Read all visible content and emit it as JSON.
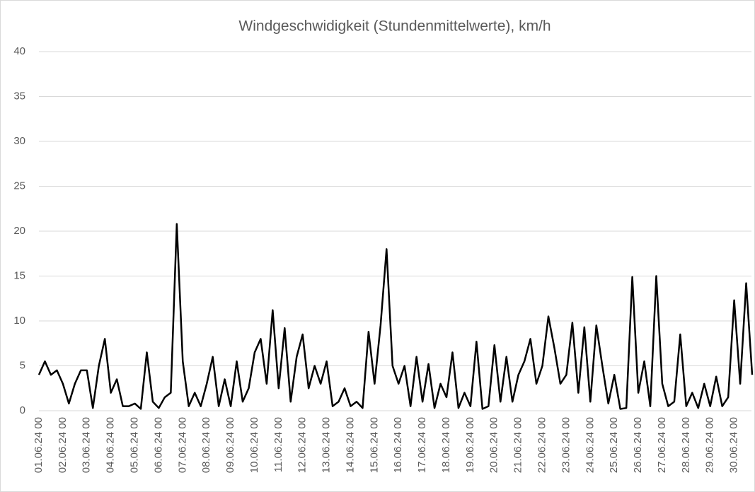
{
  "chart_data": {
    "type": "line",
    "title": "Windgeschwidigkeit (Stundenmittelwerte), km/h",
    "categories": [
      "01.06.24 00",
      null,
      null,
      null,
      "02.06.24 00",
      null,
      null,
      null,
      "03.06.24 00",
      null,
      null,
      null,
      "04.06.24 00",
      null,
      null,
      null,
      "05.06.24 00",
      null,
      null,
      null,
      "06.06.24 00",
      null,
      null,
      null,
      "07.06.24 00",
      null,
      null,
      null,
      "08.06.24 00",
      null,
      null,
      null,
      "09.06.24 00",
      null,
      null,
      null,
      "10.06.24 00",
      null,
      null,
      null,
      "11.06.24 00",
      null,
      null,
      null,
      "12.06.24 00",
      null,
      null,
      null,
      "13.06.24 00",
      null,
      null,
      null,
      "14.06.24 00",
      null,
      null,
      null,
      "15.06.24 00",
      null,
      null,
      null,
      "16.06.24 00",
      null,
      null,
      null,
      "17.06.24 00",
      null,
      null,
      null,
      "18.06.24 00",
      null,
      null,
      null,
      "19.06.24 00",
      null,
      null,
      null,
      "20.06.24 00",
      null,
      null,
      null,
      "21.06.24 00",
      null,
      null,
      null,
      "22.06.24 00",
      null,
      null,
      null,
      "23.06.24 00",
      null,
      null,
      null,
      "24.06.24 00",
      null,
      null,
      null,
      "25.06.24 00",
      null,
      null,
      null,
      "26.06.24 00",
      null,
      null,
      null,
      "27.06.24 00",
      null,
      null,
      null,
      "28.06.24 00",
      null,
      null,
      null,
      "29.06.24 00",
      null,
      null,
      null,
      "30.06.24 00",
      null,
      null,
      null
    ],
    "values": [
      4,
      5.5,
      4,
      4.5,
      3,
      0.8,
      3,
      4.5,
      4.5,
      0.3,
      5,
      8,
      2,
      3.5,
      0.5,
      0.5,
      0.8,
      0.2,
      6.5,
      1,
      0.3,
      1.5,
      2,
      20.8,
      5.5,
      0.5,
      2,
      0.5,
      3,
      6,
      0.5,
      3.5,
      0.5,
      5.5,
      1,
      2.5,
      6.5,
      8,
      3,
      11.2,
      2.5,
      9.2,
      1,
      6,
      8.5,
      2.5,
      5,
      3,
      5.5,
      0.5,
      1,
      2.5,
      0.5,
      1,
      0.3,
      8.8,
      3,
      9.5,
      18,
      5,
      3,
      5,
      0.5,
      6,
      1,
      5.2,
      0.3,
      3,
      1.5,
      6.5,
      0.3,
      2,
      0.5,
      7.7,
      0.2,
      0.5,
      7.3,
      1,
      6,
      1,
      4,
      5.5,
      8,
      3,
      5,
      10.5,
      7,
      3,
      4,
      9.8,
      2,
      9.3,
      1,
      9.5,
      5,
      0.8,
      4,
      0.2,
      0.3,
      14.9,
      2,
      5.5,
      0.5,
      15,
      3,
      0.5,
      1,
      8.5,
      0.5,
      2,
      0.3,
      3,
      0.5,
      3.8,
      0.5,
      1.5,
      12.3,
      3,
      14.2,
      4
    ],
    "color": "#000000",
    "ylim": [
      0,
      40
    ],
    "yticks": [
      0,
      5,
      10,
      15,
      20,
      25,
      30,
      35,
      40
    ],
    "grid": true
  }
}
